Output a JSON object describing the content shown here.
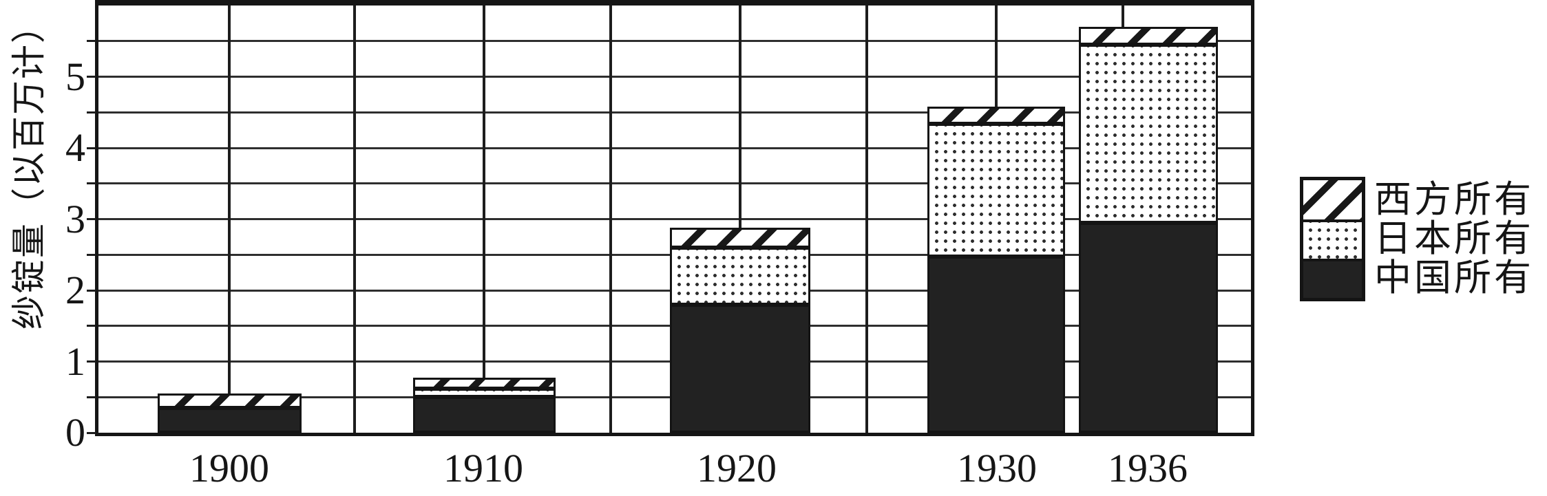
{
  "chart_data": {
    "type": "bar",
    "stacked": true,
    "title": "",
    "categories": [
      "1900",
      "1910",
      "1920",
      "1930",
      "1936"
    ],
    "series": [
      {
        "name": "中国所有",
        "key": "chinese-owned",
        "pattern": "solid-black",
        "values": [
          0.35,
          0.5,
          1.8,
          2.47,
          2.95
        ]
      },
      {
        "name": "日本所有",
        "key": "japanese-owned",
        "pattern": "dotted",
        "values": [
          0.0,
          0.12,
          0.8,
          1.87,
          2.5
        ]
      },
      {
        "name": "西方所有",
        "key": "western-owned",
        "pattern": "diagonal-hatch",
        "values": [
          0.2,
          0.15,
          0.28,
          0.24,
          0.25
        ]
      }
    ],
    "totals": [
      0.55,
      0.77,
      2.88,
      4.58,
      5.7
    ],
    "xlabel": "",
    "ylabel": "纱锭量（以百万计）",
    "ylim": [
      0,
      6
    ],
    "yticks": [
      0,
      1,
      2,
      3,
      4,
      5
    ],
    "grid": true,
    "grid_step": 0.5,
    "legend_position": "right"
  },
  "axes": {
    "y_title": "纱锭量（以百万计）",
    "y_tick_labels": [
      "0",
      "1",
      "2",
      "3",
      "4",
      "5"
    ],
    "x_tick_labels": [
      "1900",
      "1910",
      "1920",
      "1930",
      "1936"
    ]
  },
  "legend": {
    "items": [
      {
        "label": "西方所有",
        "key": "western-owned",
        "pattern": "diagonal-hatch"
      },
      {
        "label": "日本所有",
        "key": "japanese-owned",
        "pattern": "dotted"
      },
      {
        "label": "中国所有",
        "key": "chinese-owned",
        "pattern": "solid-black"
      }
    ]
  },
  "colors": {
    "ink": "#151515",
    "background": "#ffffff",
    "bar_black": "#222222",
    "gridline": "#2e2e2e"
  }
}
